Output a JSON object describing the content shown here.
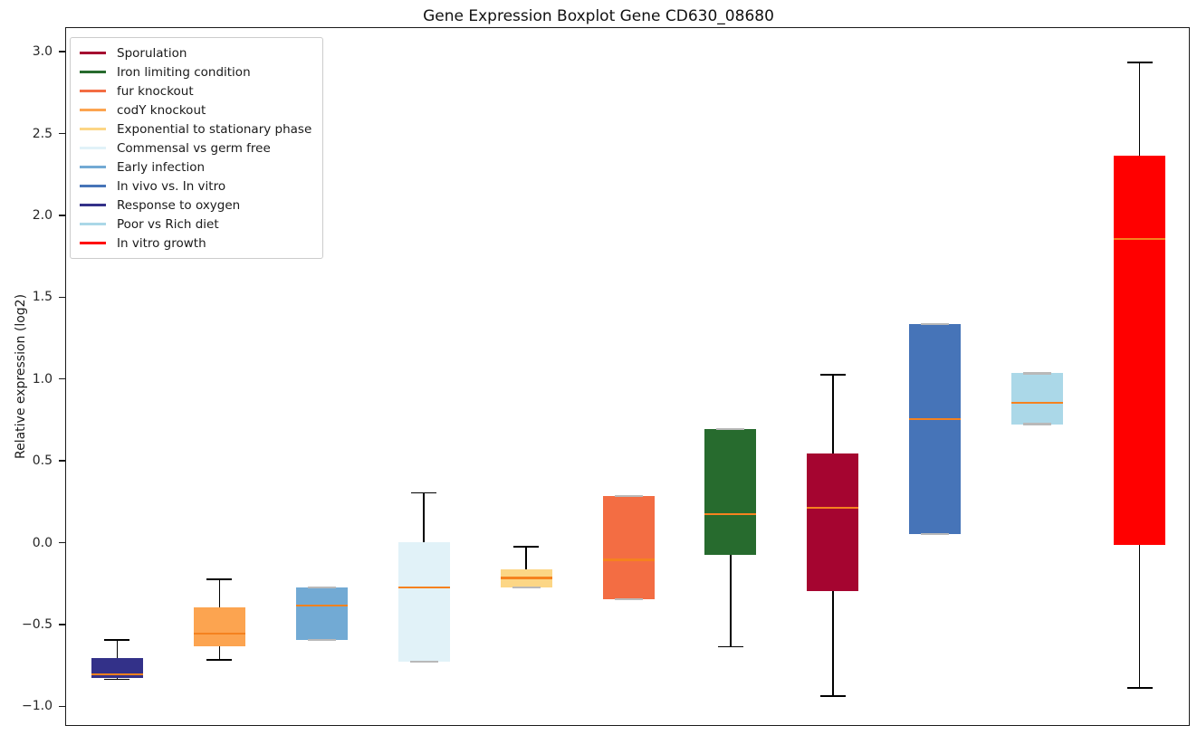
{
  "chart_data": {
    "type": "boxplot",
    "title": "Gene Expression Boxplot Gene CD630_08680",
    "ylabel": "Relative expression (log2)",
    "xlabel": "",
    "x_tick_labels": [],
    "ylim": [
      -1.12,
      3.15
    ],
    "yticks": [
      3.0,
      2.5,
      2.0,
      1.5,
      1.0,
      0.5,
      0.0,
      -0.5,
      -1.0
    ],
    "grid": false,
    "legend_position": "upper-left",
    "median_color": "#f5821f",
    "whisker_color": "#000000",
    "degenerate_cap_color": "#b9b9b9",
    "legend": [
      {
        "label": "Sporulation",
        "color": "#a50530"
      },
      {
        "label": "Iron limiting condition",
        "color": "#276b2e"
      },
      {
        "label": "fur knockout",
        "color": "#f36d43"
      },
      {
        "label": "codY knockout",
        "color": "#fca450"
      },
      {
        "label": "Exponential to stationary phase",
        "color": "#fcd685"
      },
      {
        "label": "Commensal vs germ free",
        "color": "#e1f2f8"
      },
      {
        "label": "Early infection",
        "color": "#72aad4"
      },
      {
        "label": "In vivo vs. In vitro",
        "color": "#4674b8"
      },
      {
        "label": "Response to oxygen",
        "color": "#333189"
      },
      {
        "label": "Poor vs Rich diet",
        "color": "#abd8e8"
      },
      {
        "label": "In vitro growth",
        "color": "#ff0000"
      }
    ],
    "boxes": [
      {
        "condition": "Response to oxygen",
        "color": "#333189",
        "whisker_low": -0.83,
        "q1": -0.82,
        "median": -0.8,
        "q3": -0.7,
        "whisker_high": -0.59
      },
      {
        "condition": "codY knockout",
        "color": "#fca450",
        "whisker_low": -0.71,
        "q1": -0.63,
        "median": -0.55,
        "q3": -0.39,
        "whisker_high": -0.22
      },
      {
        "condition": "Early infection",
        "color": "#72aad4",
        "whisker_low": -0.59,
        "q1": -0.59,
        "median": -0.38,
        "q3": -0.27,
        "whisker_high": -0.27
      },
      {
        "condition": "Commensal vs germ free",
        "color": "#e1f2f8",
        "whisker_low": -0.72,
        "q1": -0.72,
        "median": -0.27,
        "q3": 0.01,
        "whisker_high": 0.31
      },
      {
        "condition": "Exponential to stationary phase",
        "color": "#fcd685",
        "whisker_low": -0.27,
        "q1": -0.27,
        "median": -0.21,
        "q3": -0.16,
        "whisker_high": -0.02
      },
      {
        "condition": "fur knockout",
        "color": "#f36d43",
        "whisker_low": -0.34,
        "q1": -0.34,
        "median": -0.1,
        "q3": 0.29,
        "whisker_high": 0.29
      },
      {
        "condition": "Iron limiting condition",
        "color": "#276b2e",
        "whisker_low": -0.63,
        "q1": -0.07,
        "median": 0.18,
        "q3": 0.7,
        "whisker_high": 0.7
      },
      {
        "condition": "Sporulation",
        "color": "#a50530",
        "whisker_low": -0.93,
        "q1": -0.29,
        "median": 0.22,
        "q3": 0.55,
        "whisker_high": 1.03
      },
      {
        "condition": "In vivo vs. In vitro",
        "color": "#4674b8",
        "whisker_low": 0.06,
        "q1": 0.06,
        "median": 0.76,
        "q3": 1.34,
        "whisker_high": 1.34
      },
      {
        "condition": "Poor vs Rich diet",
        "color": "#abd8e8",
        "whisker_low": 0.73,
        "q1": 0.73,
        "median": 0.86,
        "q3": 1.04,
        "whisker_high": 1.04
      },
      {
        "condition": "In vitro growth",
        "color": "#ff0000",
        "whisker_low": -0.88,
        "q1": -0.01,
        "median": 1.86,
        "q3": 2.37,
        "whisker_high": 2.94
      }
    ]
  }
}
